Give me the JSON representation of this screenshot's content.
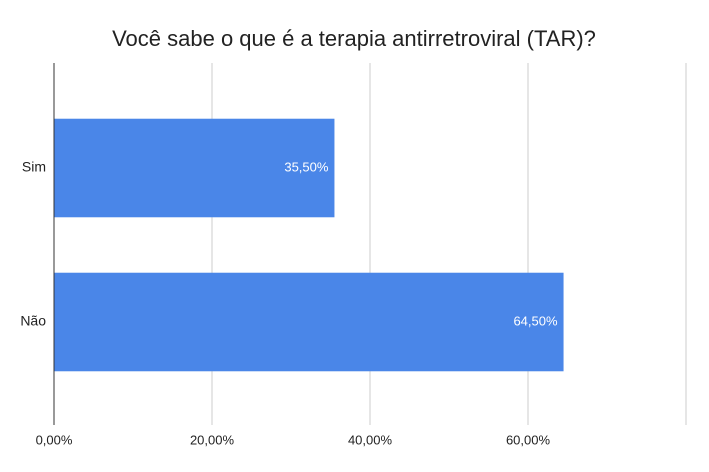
{
  "chart_data": {
    "type": "bar",
    "orientation": "horizontal",
    "title": "Você sabe o que é a terapia antirretroviral (TAR)?",
    "categories": [
      "Sim",
      "Não"
    ],
    "values": [
      35.5,
      64.5
    ],
    "value_labels": [
      "35,50%",
      "64,50%"
    ],
    "color": "#4a86e8",
    "xlim": [
      0,
      80
    ],
    "xticks": [
      {
        "value": 0,
        "label": "0,00%"
      },
      {
        "value": 20,
        "label": "20,00%"
      },
      {
        "value": 40,
        "label": "40,00%"
      },
      {
        "value": 60,
        "label": "60,00%"
      }
    ],
    "grid": true
  }
}
